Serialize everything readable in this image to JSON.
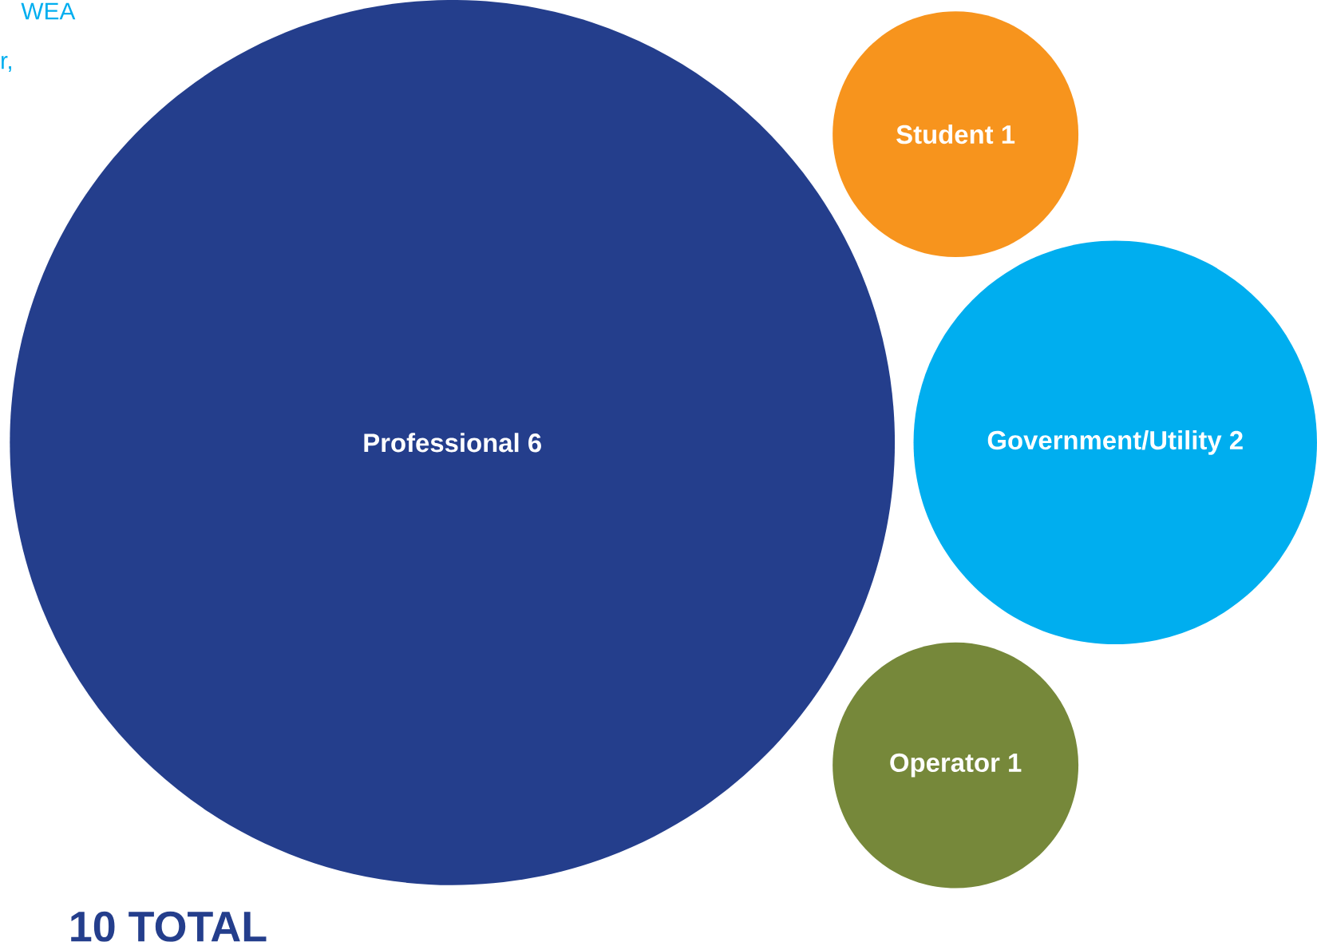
{
  "chart_data": {
    "type": "other",
    "categories": [
      "Professional",
      "Student",
      "Government/Utility",
      "Operator"
    ],
    "values": [
      6,
      1,
      2,
      1
    ],
    "colors": [
      "#243e8c",
      "#f7941d",
      "#00aeef",
      "#76883a"
    ],
    "data_labels": true,
    "annotations": [
      "10 TOTAL",
      "WEA",
      "r,"
    ]
  }
}
